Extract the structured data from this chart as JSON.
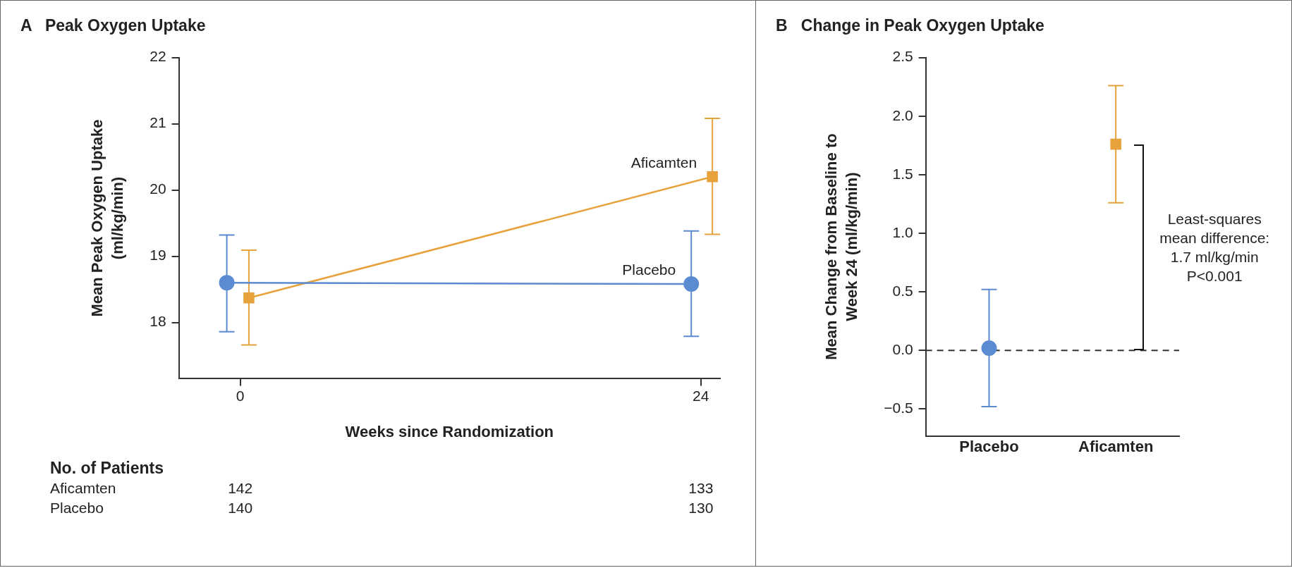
{
  "chart_data": [
    {
      "type": "line",
      "title": "A   Peak Oxygen Uptake",
      "xlabel": "Weeks since Randomization",
      "ylabel": "Mean Peak Oxygen Uptake\n(ml/kg/min)",
      "xlim": [
        -3.2,
        25
      ],
      "xticks": [
        0,
        24
      ],
      "ylim": [
        17.15,
        22
      ],
      "yticks": [
        18,
        19,
        20,
        21,
        22
      ],
      "grid": false,
      "legend": false,
      "series": [
        {
          "name": "Placebo",
          "color": "#5b8bd0",
          "marker": "circle",
          "x": [
            -0.7,
            23.5
          ],
          "values": [
            18.6,
            18.58
          ],
          "errors": [
            [
              17.86,
              19.32
            ],
            [
              17.79,
              19.38
            ]
          ]
        },
        {
          "name": "Aficamten",
          "color": "#e8a23c",
          "marker": "square",
          "x": [
            0.45,
            24.6
          ],
          "values": [
            18.37,
            20.2
          ],
          "errors": [
            [
              17.66,
              19.09
            ],
            [
              19.33,
              21.08
            ]
          ]
        }
      ],
      "annotations": [
        "No. of Patients",
        "Aficamten",
        "142",
        "133",
        "Placebo",
        "140",
        "130"
      ]
    },
    {
      "type": "scatter",
      "title": "B   Change in Peak Oxygen Uptake",
      "ylabel": "Mean Change from Baseline to\nWeek 24 (ml/kg/min)",
      "categories": [
        "Placebo",
        "Aficamten"
      ],
      "ylim": [
        -0.73,
        2.5
      ],
      "yticks": [
        {
          "value": -0.5,
          "label": "−0.5"
        },
        {
          "value": 0,
          "label": "0.0"
        },
        {
          "value": 0.5,
          "label": "0.5"
        },
        {
          "value": 1,
          "label": "1.0"
        },
        {
          "value": 1.5,
          "label": "1.5"
        },
        {
          "value": 2,
          "label": "2.0"
        },
        {
          "value": 2.5,
          "label": "2.5"
        }
      ],
      "grid": false,
      "legend": false,
      "series": [
        {
          "color": "#5b8bd0",
          "marker": "circle",
          "x": [
            "Placebo"
          ],
          "values": [
            0.02
          ],
          "errors": [
            [
              -0.48,
              0.52
            ]
          ]
        },
        {
          "color": "#e8a23c",
          "marker": "square",
          "x": [
            "Aficamten"
          ],
          "values": [
            1.76
          ],
          "errors": [
            [
              1.26,
              2.26
            ]
          ]
        }
      ],
      "ref_lines": [
        {
          "axis": "y",
          "value": 0,
          "color": "#333333",
          "line_style": "dashed"
        }
      ],
      "annotations": [
        "Least-squares\nmean difference:\n1.7 ml/kg/min\nP<0.001"
      ]
    }
  ]
}
